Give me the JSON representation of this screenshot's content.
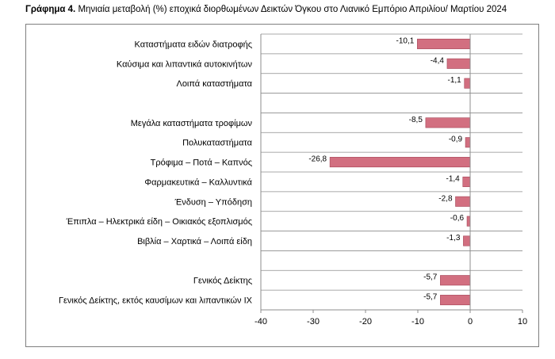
{
  "caption": {
    "prefix": "Γράφημα 4.",
    "text": "Μηνιαία μεταβολή (%) εποχικά διορθωμένων Δεικτών Όγκου στο Λιανικό Εμπόριο Απριλίου/ Μαρτίου 2024"
  },
  "chart_data": {
    "type": "bar",
    "orientation": "horizontal",
    "categories": [
      "Καταστήματα ειδών διατροφής",
      "Καύσιμα και λιπαντικά αυτοκινήτων",
      "Λοιπά καταστήματα",
      "",
      "Μεγάλα καταστήματα τροφίμων",
      "Πολυκαταστήματα",
      "Τρόφιμα – Ποτά – Καπνός",
      "Φαρμακευτικά – Καλλυντικά",
      "Ένδυση – Υπόδηση",
      "Έπιπλα – Ηλεκτρικά είδη – Οικιακός εξοπλισμός",
      "Βιβλία – Χαρτικά – Λοιπά είδη",
      "",
      "Γενικός Δείκτης",
      "Γενικός Δείκτης, εκτός καυσίμων και λιπαντικών ΙΧ"
    ],
    "values": [
      -10.1,
      -4.4,
      -1.1,
      null,
      -8.5,
      -0.9,
      -26.8,
      -1.4,
      -2.8,
      -0.6,
      -1.3,
      null,
      -5.7,
      -5.7
    ],
    "value_labels": [
      "-10,1",
      "-4,4",
      "-1,1",
      "",
      "-8,5",
      "-0,9",
      "-26,8",
      "-1,4",
      "-2,8",
      "-0,6",
      "-1,3",
      "",
      "-5,7",
      "-5,7"
    ],
    "xlim": [
      -40,
      10
    ],
    "xticks": [
      -40,
      -30,
      -20,
      -10,
      0,
      10
    ],
    "xtick_labels": [
      "-40",
      "-30",
      "-20",
      "-10",
      "0",
      "10"
    ],
    "bar_color": "#d26f80",
    "bar_edge_color": "#a44456",
    "grid": true,
    "grid_axis": "horizontal lines between categories",
    "legend": "none"
  }
}
